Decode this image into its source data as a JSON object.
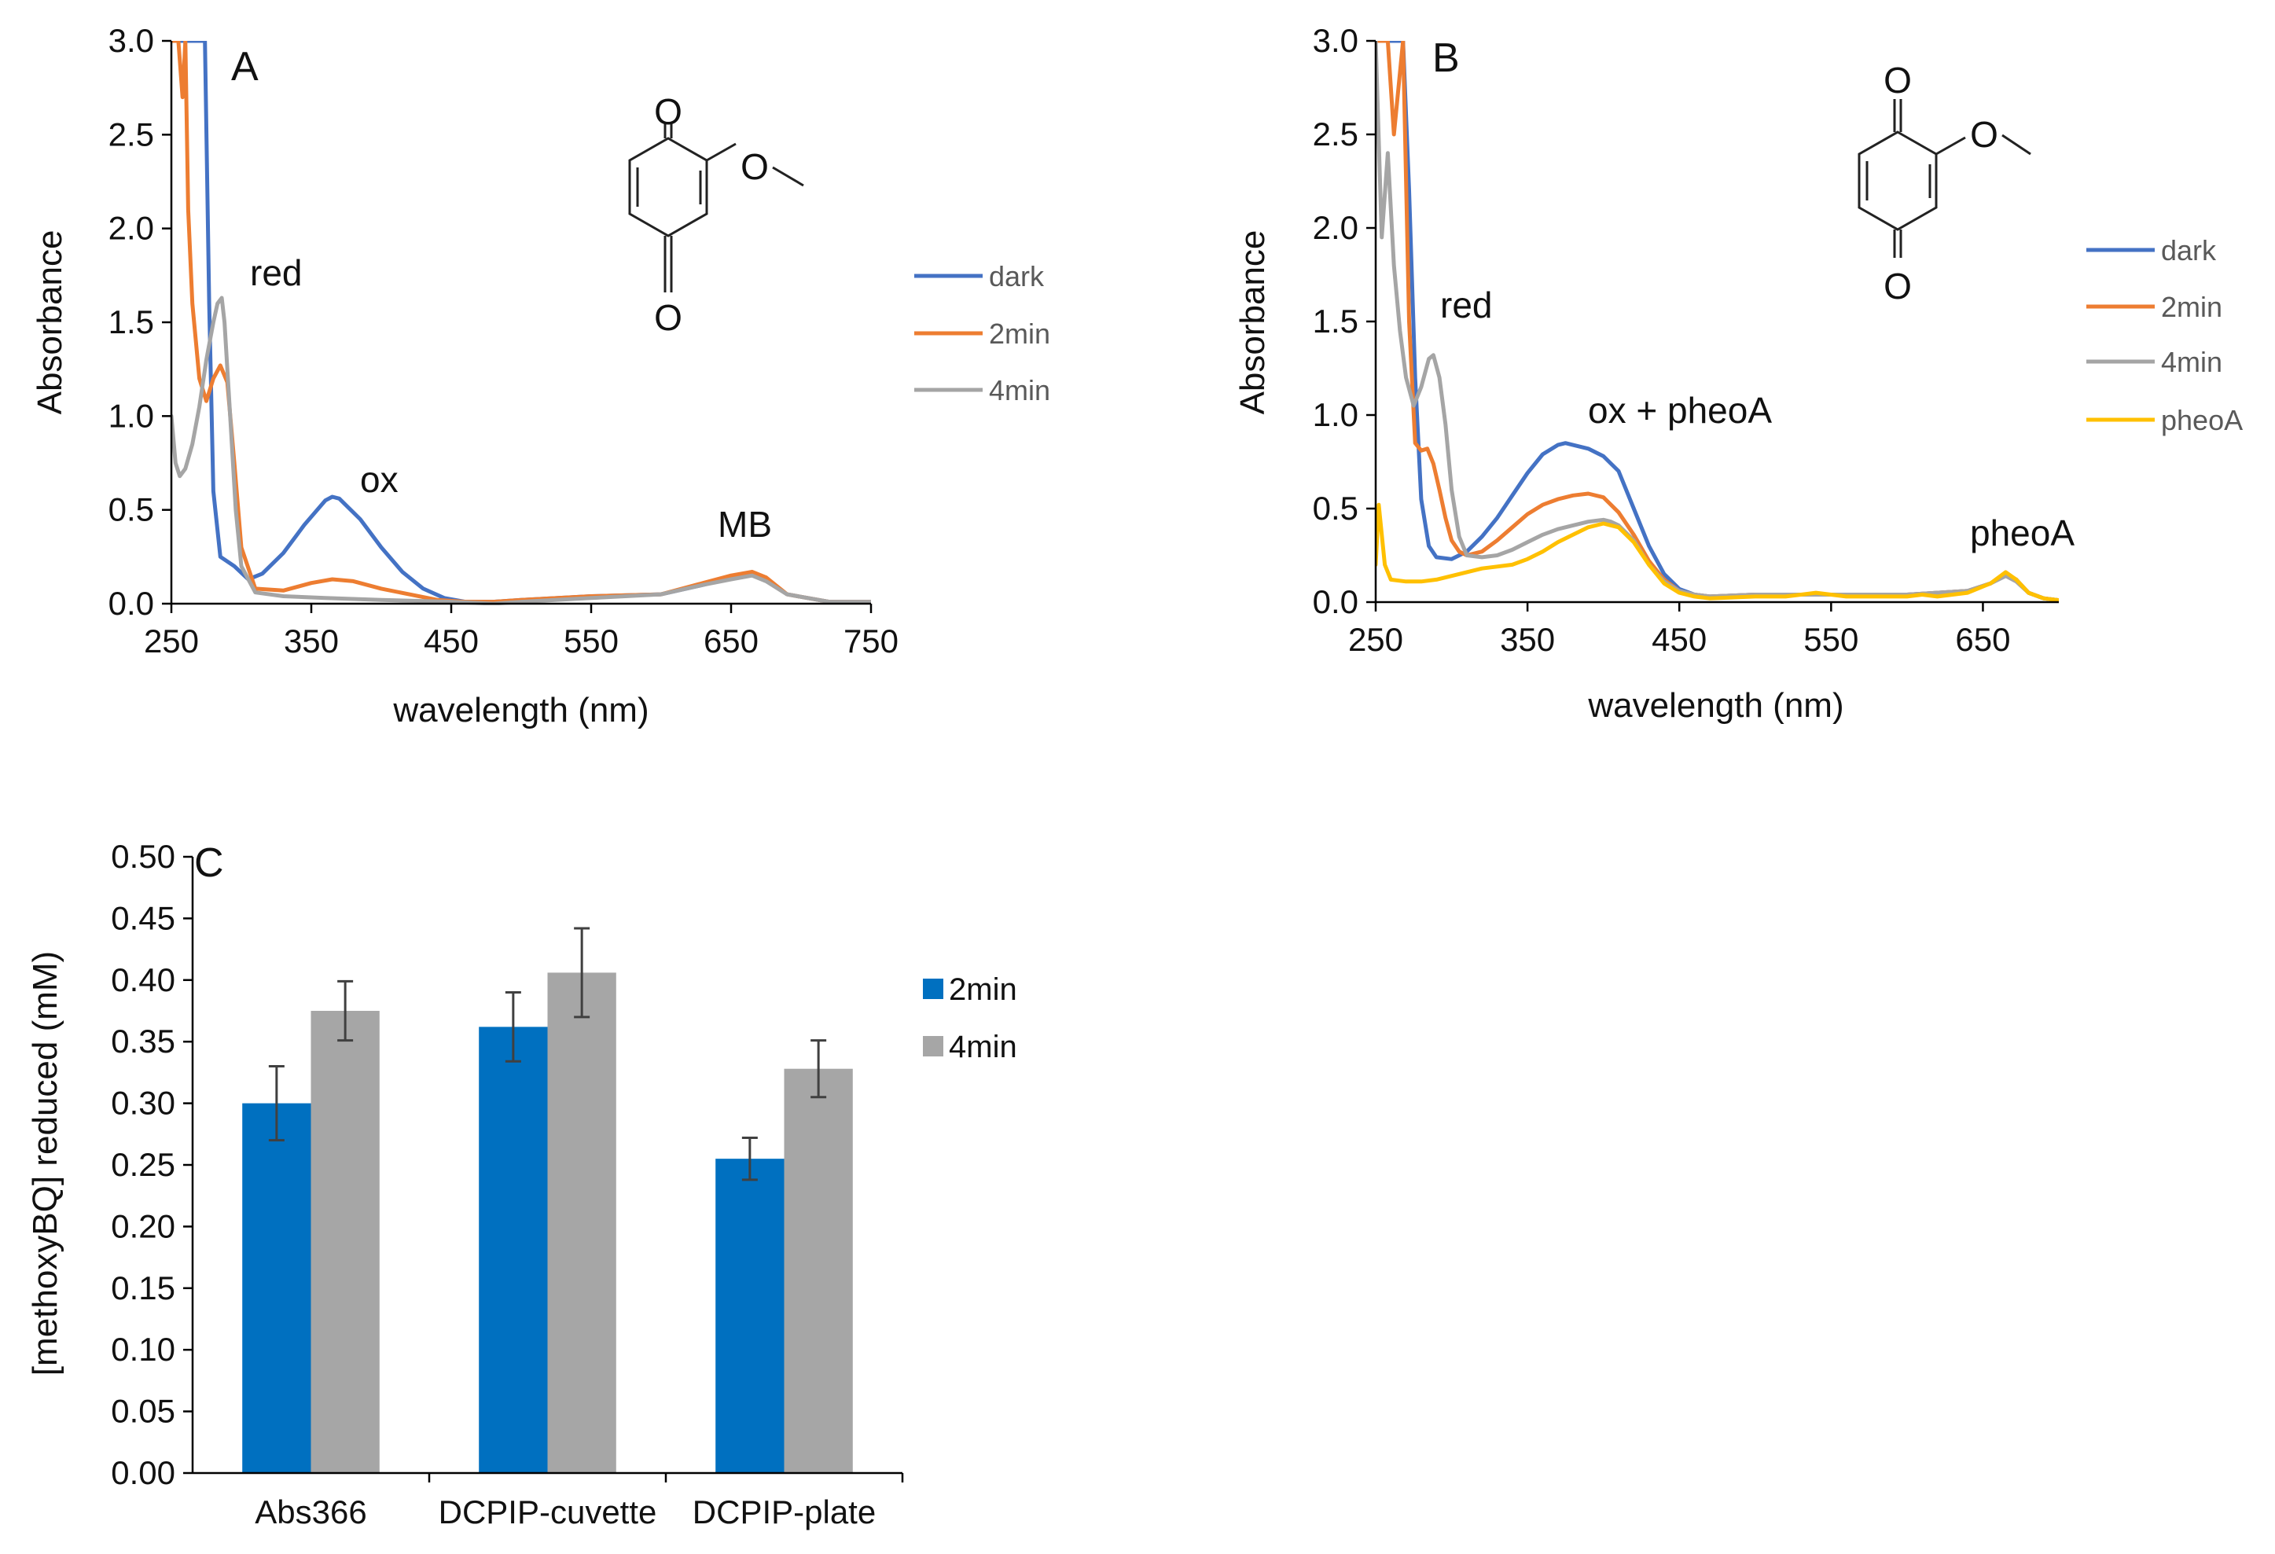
{
  "colors": {
    "dark": "#4472C4",
    "2min": "#ED7D31",
    "4min": "#A5A5A5",
    "pheoA": "#FFC000",
    "bar_2min": "#0070C0",
    "bar_4min": "#A6A6A6"
  },
  "chart_data": [
    {
      "type": "line",
      "panel": "A",
      "xlabel": "wavelength  (nm)",
      "ylabel": "Absorbance",
      "xlim": [
        250,
        750
      ],
      "ylim": [
        0,
        3.0
      ],
      "xticks": [
        "250",
        "350",
        "450",
        "550",
        "650",
        "750"
      ],
      "yticks": [
        "0.0",
        "0.5",
        "1.0",
        "1.5",
        "2.0",
        "2.5",
        "3.0"
      ],
      "annotations": [
        "red",
        "ox",
        "MB"
      ],
      "molecule": {
        "atom_top": "O",
        "atom_bottom": "O",
        "atom_side": "O"
      },
      "series": [
        {
          "name": "dark",
          "x": [
            250,
            265,
            268,
            271,
            274,
            277,
            280,
            285,
            295,
            305,
            315,
            330,
            345,
            360,
            365,
            370,
            385,
            400,
            415,
            430,
            445,
            460,
            480,
            500,
            550,
            600,
            630,
            650,
            665,
            675,
            690,
            720,
            750
          ],
          "y": [
            3.0,
            3.0,
            3.0,
            3.0,
            3.0,
            1.6,
            0.6,
            0.25,
            0.2,
            0.13,
            0.16,
            0.27,
            0.42,
            0.55,
            0.57,
            0.56,
            0.45,
            0.3,
            0.17,
            0.08,
            0.03,
            0.01,
            0.01,
            0.02,
            0.04,
            0.05,
            0.1,
            0.14,
            0.16,
            0.13,
            0.05,
            0.01,
            0.01
          ]
        },
        {
          "name": "2min",
          "x": [
            250,
            255,
            258,
            260,
            262,
            265,
            270,
            275,
            280,
            285,
            290,
            295,
            300,
            310,
            330,
            350,
            365,
            380,
            400,
            420,
            440,
            460,
            480,
            500,
            550,
            600,
            630,
            650,
            665,
            675,
            690,
            720,
            750
          ],
          "y": [
            3.0,
            3.0,
            2.7,
            3.0,
            2.1,
            1.6,
            1.2,
            1.08,
            1.2,
            1.27,
            1.18,
            0.75,
            0.3,
            0.08,
            0.07,
            0.11,
            0.13,
            0.12,
            0.08,
            0.05,
            0.02,
            0.01,
            0.01,
            0.02,
            0.04,
            0.05,
            0.11,
            0.15,
            0.17,
            0.14,
            0.05,
            0.01,
            0.01
          ]
        },
        {
          "name": "4min",
          "x": [
            250,
            253,
            256,
            260,
            265,
            270,
            275,
            280,
            283,
            286,
            288,
            292,
            296,
            300,
            310,
            330,
            360,
            400,
            450,
            480,
            500,
            550,
            600,
            630,
            650,
            665,
            675,
            690,
            720,
            750
          ],
          "y": [
            1.0,
            0.75,
            0.68,
            0.72,
            0.85,
            1.05,
            1.3,
            1.5,
            1.6,
            1.63,
            1.5,
            1.0,
            0.5,
            0.2,
            0.06,
            0.04,
            0.03,
            0.02,
            0.01,
            0.0,
            0.01,
            0.03,
            0.05,
            0.1,
            0.13,
            0.15,
            0.12,
            0.05,
            0.01,
            0.01
          ]
        }
      ]
    },
    {
      "type": "line",
      "panel": "B",
      "xlabel": "wavelength  (nm)",
      "ylabel": "Absorbance",
      "xlim": [
        250,
        700
      ],
      "ylim": [
        0,
        3.0
      ],
      "xticks": [
        "250",
        "350",
        "450",
        "550",
        "650"
      ],
      "yticks": [
        "0.0",
        "0.5",
        "1.0",
        "1.5",
        "2.0",
        "2.5",
        "3.0"
      ],
      "annotations": [
        "red",
        "ox + pheoA",
        "pheoA"
      ],
      "molecule": {
        "atom_top": "O",
        "atom_bottom": "O",
        "atom_side": "O"
      },
      "series": [
        {
          "name": "dark",
          "x": [
            250,
            268,
            272,
            276,
            280,
            285,
            290,
            300,
            310,
            320,
            330,
            340,
            350,
            360,
            370,
            375,
            380,
            390,
            400,
            410,
            420,
            430,
            440,
            450,
            460,
            470,
            500,
            550,
            600,
            640,
            655,
            665,
            672,
            680,
            690,
            700
          ],
          "y": [
            3.0,
            3.0,
            2.2,
            1.2,
            0.55,
            0.3,
            0.24,
            0.23,
            0.27,
            0.35,
            0.45,
            0.57,
            0.69,
            0.79,
            0.84,
            0.85,
            0.84,
            0.82,
            0.78,
            0.7,
            0.5,
            0.3,
            0.15,
            0.07,
            0.04,
            0.03,
            0.04,
            0.04,
            0.04,
            0.06,
            0.1,
            0.15,
            0.12,
            0.05,
            0.02,
            0.01
          ]
        },
        {
          "name": "2min",
          "x": [
            250,
            258,
            262,
            268,
            272,
            276,
            280,
            284,
            288,
            292,
            296,
            300,
            305,
            310,
            320,
            330,
            340,
            350,
            360,
            370,
            380,
            390,
            400,
            405,
            410,
            420,
            430,
            440,
            450,
            460,
            470,
            500,
            550,
            600,
            640,
            655,
            665,
            672,
            680,
            690,
            700
          ],
          "y": [
            3.0,
            3.0,
            2.5,
            3.0,
            1.5,
            0.85,
            0.81,
            0.82,
            0.74,
            0.6,
            0.45,
            0.33,
            0.27,
            0.25,
            0.27,
            0.33,
            0.4,
            0.47,
            0.52,
            0.55,
            0.57,
            0.58,
            0.56,
            0.52,
            0.48,
            0.36,
            0.22,
            0.12,
            0.06,
            0.04,
            0.03,
            0.04,
            0.04,
            0.04,
            0.06,
            0.1,
            0.15,
            0.12,
            0.05,
            0.02,
            0.01
          ]
        },
        {
          "name": "4min",
          "x": [
            250,
            254,
            258,
            262,
            266,
            270,
            275,
            280,
            285,
            288,
            292,
            296,
            300,
            305,
            310,
            320,
            330,
            340,
            350,
            360,
            370,
            380,
            390,
            400,
            405,
            410,
            420,
            430,
            440,
            450,
            460,
            470,
            500,
            550,
            600,
            640,
            655,
            665,
            672,
            680,
            690,
            700
          ],
          "y": [
            3.0,
            1.95,
            2.4,
            1.8,
            1.45,
            1.2,
            1.05,
            1.15,
            1.3,
            1.32,
            1.2,
            0.95,
            0.6,
            0.35,
            0.25,
            0.24,
            0.25,
            0.28,
            0.32,
            0.36,
            0.39,
            0.41,
            0.43,
            0.44,
            0.43,
            0.41,
            0.33,
            0.2,
            0.11,
            0.06,
            0.04,
            0.03,
            0.04,
            0.04,
            0.04,
            0.06,
            0.1,
            0.14,
            0.11,
            0.05,
            0.02,
            0.01
          ]
        },
        {
          "name": "pheoA",
          "x": [
            250,
            252,
            256,
            260,
            270,
            280,
            290,
            300,
            310,
            320,
            330,
            340,
            350,
            360,
            370,
            380,
            390,
            400,
            405,
            410,
            420,
            430,
            440,
            450,
            460,
            470,
            500,
            520,
            540,
            550,
            560,
            600,
            610,
            620,
            640,
            655,
            665,
            672,
            680,
            690,
            700
          ],
          "y": [
            0.2,
            0.52,
            0.2,
            0.12,
            0.11,
            0.11,
            0.12,
            0.14,
            0.16,
            0.18,
            0.19,
            0.2,
            0.23,
            0.27,
            0.32,
            0.36,
            0.4,
            0.42,
            0.41,
            0.4,
            0.32,
            0.2,
            0.1,
            0.05,
            0.03,
            0.02,
            0.03,
            0.03,
            0.05,
            0.04,
            0.03,
            0.03,
            0.04,
            0.03,
            0.05,
            0.1,
            0.16,
            0.12,
            0.05,
            0.02,
            0.01
          ]
        }
      ]
    },
    {
      "type": "bar",
      "panel": "C",
      "xlabel": "",
      "ylabel": "[methoxyBQ] reduced (mM)",
      "ylim": [
        0,
        0.5
      ],
      "yticks": [
        "0.00",
        "0.05",
        "0.10",
        "0.15",
        "0.20",
        "0.25",
        "0.30",
        "0.35",
        "0.40",
        "0.45",
        "0.50"
      ],
      "categories": [
        "Abs366",
        "DCPIP-cuvette",
        "DCPIP-plate"
      ],
      "series": [
        {
          "name": "2min",
          "values": [
            0.3,
            0.362,
            0.255
          ],
          "errors": [
            0.03,
            0.028,
            0.017
          ]
        },
        {
          "name": "4min",
          "values": [
            0.375,
            0.406,
            0.328
          ],
          "errors": [
            0.024,
            0.036,
            0.023
          ]
        }
      ]
    }
  ]
}
